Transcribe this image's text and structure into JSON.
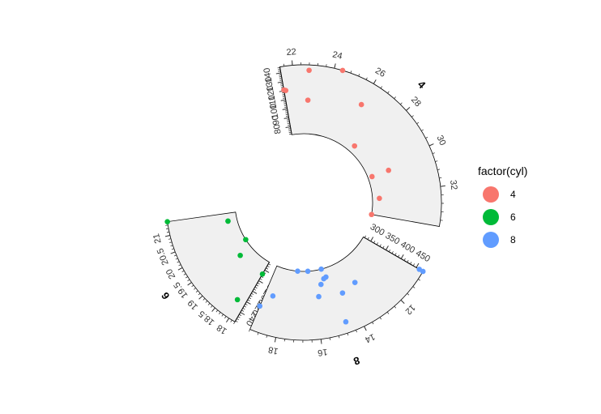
{
  "chart_data": {
    "type": "scatter",
    "layout": "circular",
    "legend": {
      "title": "factor(cyl)",
      "placement": "right",
      "items": [
        {
          "label": "4",
          "color": "#F8766D"
        },
        {
          "label": "6",
          "color": "#00BA38"
        },
        {
          "label": "8",
          "color": "#619CFF"
        }
      ]
    },
    "panel_fill": "#F0F0F0",
    "sectors": [
      {
        "name": "4",
        "color": "#F8766D",
        "x_range": [
          21.4,
          33.9
        ],
        "x_ticks": [
          22,
          24,
          26,
          28,
          30,
          32
        ],
        "y_range": [
          71.1,
          146.7
        ],
        "y_ticks": [
          80,
          90,
          100,
          110,
          120,
          130,
          140
        ],
        "points": [
          {
            "x": 22.8,
            "y": 108
          },
          {
            "x": 24.4,
            "y": 146.7
          },
          {
            "x": 22.8,
            "y": 140.8
          },
          {
            "x": 32.4,
            "y": 78.7
          },
          {
            "x": 30.4,
            "y": 75.7
          },
          {
            "x": 33.9,
            "y": 71.1
          },
          {
            "x": 21.5,
            "y": 120.1
          },
          {
            "x": 27.3,
            "y": 79
          },
          {
            "x": 26,
            "y": 120.3
          },
          {
            "x": 30.4,
            "y": 95.1
          },
          {
            "x": 21.4,
            "y": 121
          }
        ]
      },
      {
        "name": "6",
        "color": "#00BA38",
        "x_range": [
          17.8,
          21.4
        ],
        "x_ticks": [
          18,
          18.5,
          19,
          19.5,
          20,
          20.5,
          21
        ],
        "y_range": [
          145,
          258
        ],
        "y_ticks": [
          160,
          180,
          200,
          220,
          240
        ],
        "points": [
          {
            "x": 21,
            "y": 160
          },
          {
            "x": 21,
            "y": 160
          },
          {
            "x": 21.4,
            "y": 258
          },
          {
            "x": 18.1,
            "y": 225
          },
          {
            "x": 19.2,
            "y": 167.6
          },
          {
            "x": 17.8,
            "y": 167.6
          },
          {
            "x": 19.7,
            "y": 145
          }
        ]
      },
      {
        "name": "8",
        "color": "#619CFF",
        "x_range": [
          10.4,
          19.2
        ],
        "x_ticks": [
          12,
          14,
          16,
          18
        ],
        "y_range": [
          275.8,
          472
        ],
        "y_ticks": [
          300,
          350,
          400,
          450
        ],
        "points": [
          {
            "x": 18.7,
            "y": 360
          },
          {
            "x": 14.3,
            "y": 360
          },
          {
            "x": 16.4,
            "y": 275.8
          },
          {
            "x": 17.3,
            "y": 275.8
          },
          {
            "x": 15.2,
            "y": 275.8
          },
          {
            "x": 10.4,
            "y": 472
          },
          {
            "x": 10.4,
            "y": 460
          },
          {
            "x": 14.7,
            "y": 440
          },
          {
            "x": 15.5,
            "y": 318
          },
          {
            "x": 15.2,
            "y": 304
          },
          {
            "x": 13.3,
            "y": 350
          },
          {
            "x": 19.2,
            "y": 400
          },
          {
            "x": 15.8,
            "y": 351
          },
          {
            "x": 15,
            "y": 301
          }
        ]
      }
    ]
  }
}
